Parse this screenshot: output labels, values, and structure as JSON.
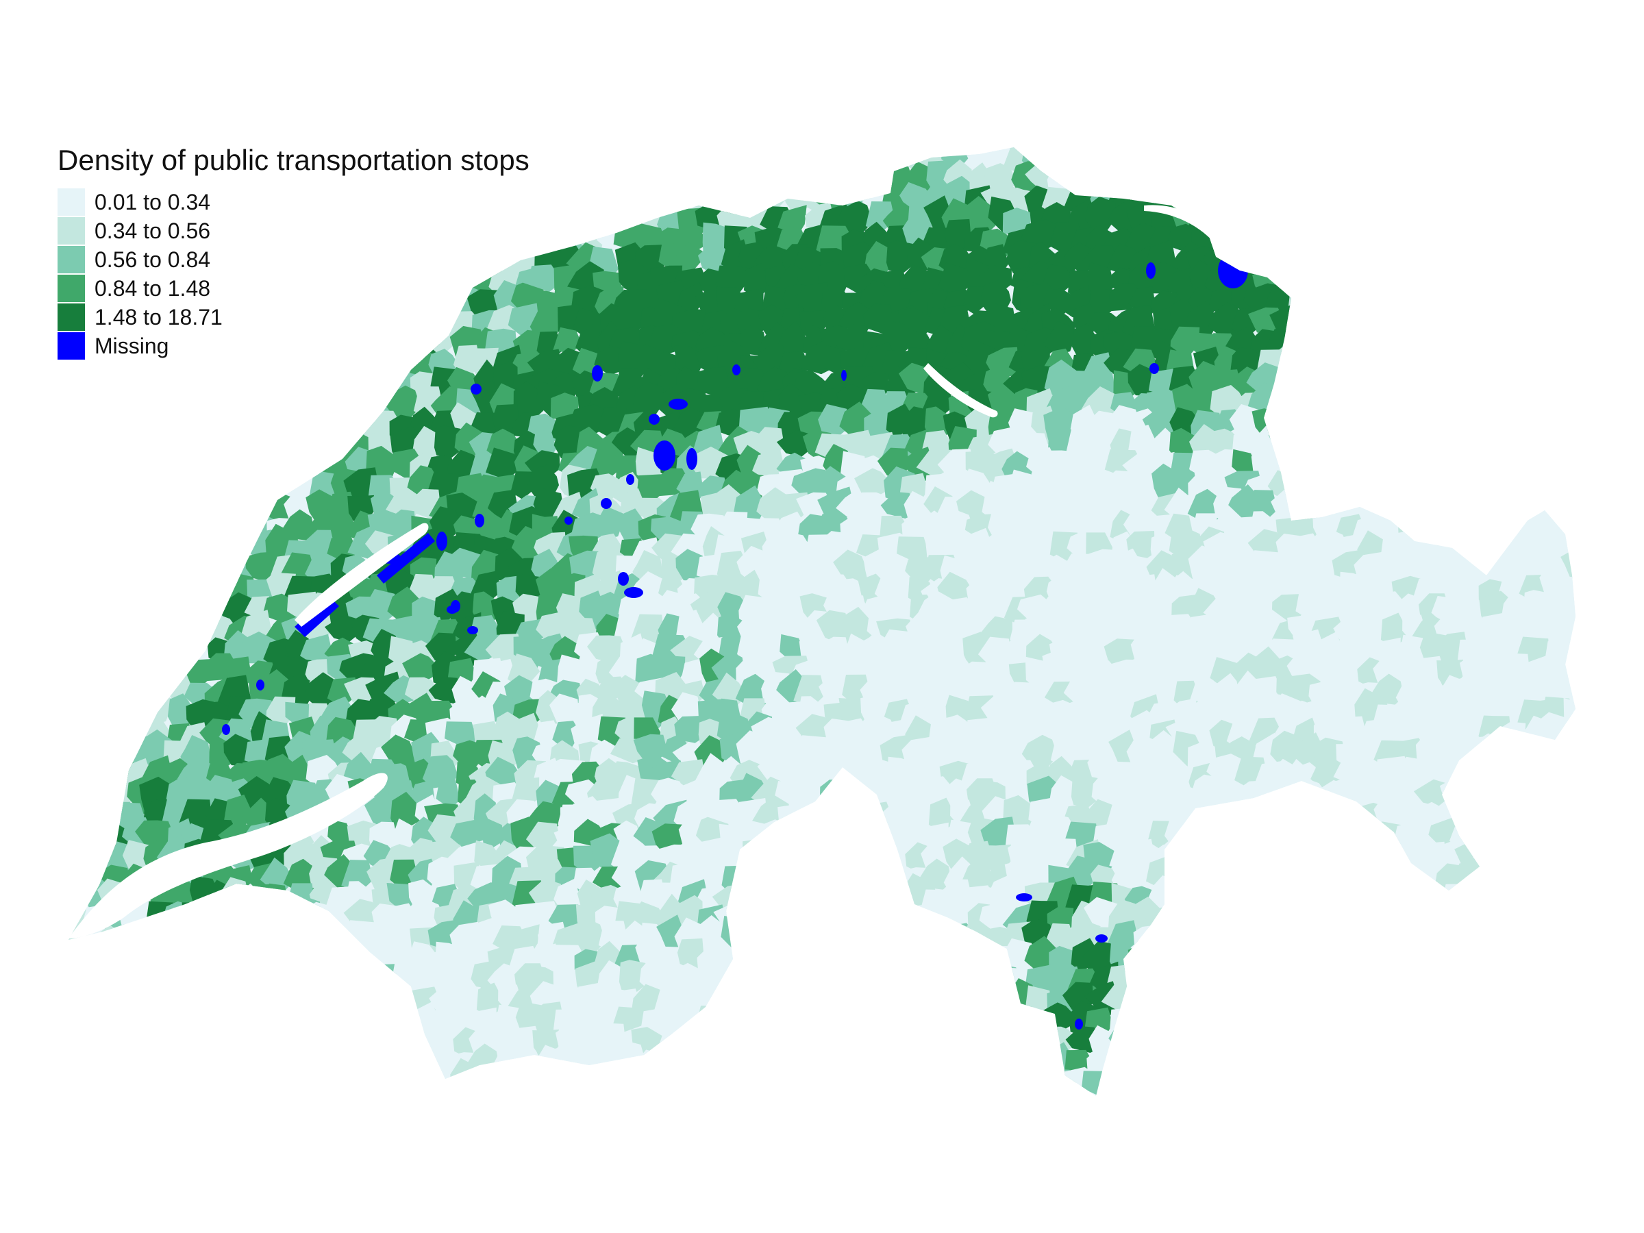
{
  "map": {
    "legend_title": "Density of public transportation stops",
    "legend_items": [
      {
        "label": "0.01 to 0.34",
        "color": "#e6f4f8"
      },
      {
        "label": "0.34 to 0.56",
        "color": "#c3e7df"
      },
      {
        "label": "0.56 to 0.84",
        "color": "#7ccbb0"
      },
      {
        "label": "0.84 to 1.48",
        "color": "#40a86a"
      },
      {
        "label": "1.48 to 18.71",
        "color": "#177e3c"
      },
      {
        "label": "Missing",
        "color": "#0000ff"
      }
    ],
    "region": "Switzerland",
    "colors": {
      "background": "#ffffff",
      "class_1": "#e6f4f8",
      "class_2": "#c3e7df",
      "class_3": "#7ccbb0",
      "class_4": "#40a86a",
      "class_5": "#177e3c",
      "missing": "#0000ff"
    }
  }
}
